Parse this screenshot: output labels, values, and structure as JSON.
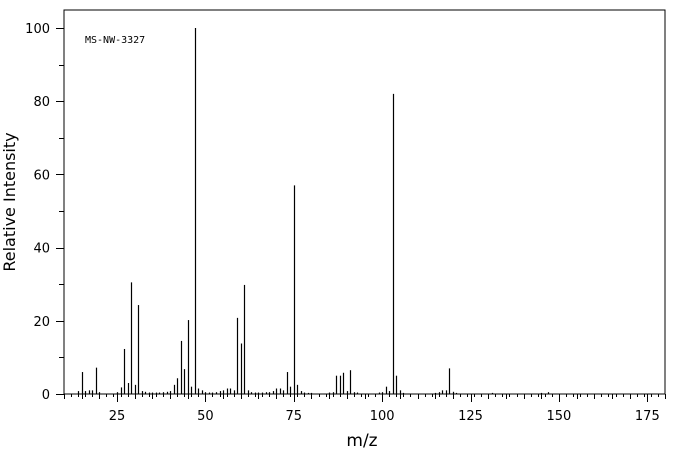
{
  "chart_data": {
    "type": "bar",
    "title": "",
    "annotation": "MS-NW-3327",
    "xlabel": "m/z",
    "ylabel": "Relative Intensity",
    "xlim": [
      10,
      180
    ],
    "ylim": [
      0,
      100
    ],
    "x_ticks": [
      25,
      50,
      75,
      100,
      125,
      150,
      175
    ],
    "y_ticks": [
      0,
      20,
      40,
      60,
      80,
      100
    ],
    "grid": false,
    "legend": "none",
    "peaks": [
      {
        "mz": 14,
        "i": 0.8
      },
      {
        "mz": 15,
        "i": 6.0
      },
      {
        "mz": 16,
        "i": 0.8
      },
      {
        "mz": 17,
        "i": 1.0
      },
      {
        "mz": 18,
        "i": 1.0
      },
      {
        "mz": 19,
        "i": 7.2
      },
      {
        "mz": 20,
        "i": 0.5
      },
      {
        "mz": 25,
        "i": 0.5
      },
      {
        "mz": 26,
        "i": 1.8
      },
      {
        "mz": 27,
        "i": 12.3
      },
      {
        "mz": 28,
        "i": 3.0
      },
      {
        "mz": 29,
        "i": 30.5
      },
      {
        "mz": 30,
        "i": 2.5
      },
      {
        "mz": 31,
        "i": 24.3
      },
      {
        "mz": 32,
        "i": 0.8
      },
      {
        "mz": 33,
        "i": 0.6
      },
      {
        "mz": 34,
        "i": 0.4
      },
      {
        "mz": 35,
        "i": 0.4
      },
      {
        "mz": 36,
        "i": 0.4
      },
      {
        "mz": 37,
        "i": 0.4
      },
      {
        "mz": 38,
        "i": 0.5
      },
      {
        "mz": 39,
        "i": 0.6
      },
      {
        "mz": 40,
        "i": 0.8
      },
      {
        "mz": 41,
        "i": 2.5
      },
      {
        "mz": 42,
        "i": 4.3
      },
      {
        "mz": 43,
        "i": 14.5
      },
      {
        "mz": 44,
        "i": 6.8
      },
      {
        "mz": 45,
        "i": 20.2
      },
      {
        "mz": 46,
        "i": 2.0
      },
      {
        "mz": 47,
        "i": 100.0
      },
      {
        "mz": 48,
        "i": 1.5
      },
      {
        "mz": 49,
        "i": 1.0
      },
      {
        "mz": 50,
        "i": 0.5
      },
      {
        "mz": 51,
        "i": 0.4
      },
      {
        "mz": 52,
        "i": 0.4
      },
      {
        "mz": 53,
        "i": 0.5
      },
      {
        "mz": 54,
        "i": 0.8
      },
      {
        "mz": 55,
        "i": 1.0
      },
      {
        "mz": 56,
        "i": 1.5
      },
      {
        "mz": 57,
        "i": 1.5
      },
      {
        "mz": 58,
        "i": 1.0
      },
      {
        "mz": 59,
        "i": 20.8
      },
      {
        "mz": 60,
        "i": 13.8
      },
      {
        "mz": 61,
        "i": 29.8
      },
      {
        "mz": 62,
        "i": 1.0
      },
      {
        "mz": 63,
        "i": 0.5
      },
      {
        "mz": 64,
        "i": 0.4
      },
      {
        "mz": 65,
        "i": 0.4
      },
      {
        "mz": 66,
        "i": 0.4
      },
      {
        "mz": 67,
        "i": 0.5
      },
      {
        "mz": 68,
        "i": 0.5
      },
      {
        "mz": 69,
        "i": 0.8
      },
      {
        "mz": 70,
        "i": 1.5
      },
      {
        "mz": 71,
        "i": 1.5
      },
      {
        "mz": 72,
        "i": 1.0
      },
      {
        "mz": 73,
        "i": 6.0
      },
      {
        "mz": 74,
        "i": 2.0
      },
      {
        "mz": 75,
        "i": 57.0
      },
      {
        "mz": 76,
        "i": 2.5
      },
      {
        "mz": 77,
        "i": 0.8
      },
      {
        "mz": 78,
        "i": 0.4
      },
      {
        "mz": 79,
        "i": 0.3
      },
      {
        "mz": 80,
        "i": 0.3
      },
      {
        "mz": 85,
        "i": 0.4
      },
      {
        "mz": 86,
        "i": 0.5
      },
      {
        "mz": 87,
        "i": 5.0
      },
      {
        "mz": 88,
        "i": 5.0
      },
      {
        "mz": 89,
        "i": 5.8
      },
      {
        "mz": 90,
        "i": 0.8
      },
      {
        "mz": 91,
        "i": 6.5
      },
      {
        "mz": 92,
        "i": 0.5
      },
      {
        "mz": 93,
        "i": 0.4
      },
      {
        "mz": 99,
        "i": 0.4
      },
      {
        "mz": 100,
        "i": 0.5
      },
      {
        "mz": 101,
        "i": 2.0
      },
      {
        "mz": 102,
        "i": 0.8
      },
      {
        "mz": 103,
        "i": 82.0
      },
      {
        "mz": 104,
        "i": 5.0
      },
      {
        "mz": 105,
        "i": 1.0
      },
      {
        "mz": 106,
        "i": 0.3
      },
      {
        "mz": 115,
        "i": 0.3
      },
      {
        "mz": 116,
        "i": 0.5
      },
      {
        "mz": 117,
        "i": 1.0
      },
      {
        "mz": 118,
        "i": 1.0
      },
      {
        "mz": 119,
        "i": 7.0
      },
      {
        "mz": 120,
        "i": 0.6
      },
      {
        "mz": 121,
        "i": 0.3
      },
      {
        "mz": 131,
        "i": 0.3
      },
      {
        "mz": 145,
        "i": 0.3
      },
      {
        "mz": 147,
        "i": 0.5
      }
    ]
  }
}
